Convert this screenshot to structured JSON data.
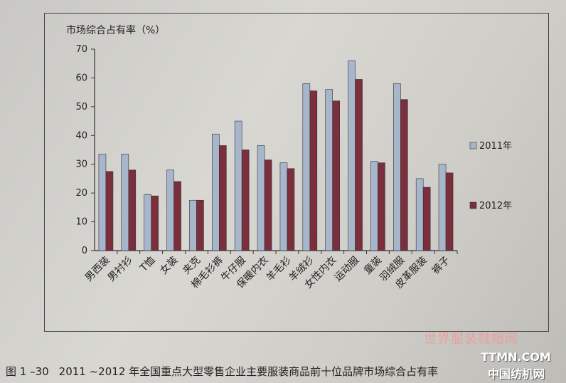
{
  "caption": {
    "number": "图 1 –30",
    "text": "2011 ~2012 年全国重点大型零售企业主要服装商品前十位品牌市场综合占有率"
  },
  "watermark": {
    "cn": "世界服装鞋帽网",
    "en": "TTMN.COM",
    "cn2": "中国纺机网"
  },
  "chart_data": {
    "type": "bar",
    "title": "市场综合占有率（%）",
    "categories": [
      "男西装",
      "男衬衫",
      "T恤",
      "女装",
      "夹克",
      "棉毛衫裤",
      "牛仔服",
      "保暖内衣",
      "羊毛衫",
      "羊绒衫",
      "女性内衣",
      "运动服",
      "童装",
      "羽绒服",
      "皮革服装",
      "裤子"
    ],
    "series": [
      {
        "name": "2011年",
        "color": "#a8b6cc",
        "values": [
          33.5,
          33.5,
          19.5,
          28,
          17.5,
          40.5,
          45,
          36.5,
          30.5,
          58,
          56,
          66,
          31,
          58,
          25,
          30
        ]
      },
      {
        "name": "2012年",
        "color": "#7b2f3c",
        "values": [
          27.5,
          28,
          19,
          24,
          17.5,
          36.5,
          35,
          31.5,
          28.5,
          55.5,
          52,
          59.5,
          30.5,
          52.5,
          22,
          27
        ]
      }
    ],
    "ylim": [
      0,
      70
    ],
    "yticks": [
      0,
      10,
      20,
      30,
      40,
      50,
      60,
      70
    ],
    "legend_position": "right",
    "grid": false
  }
}
